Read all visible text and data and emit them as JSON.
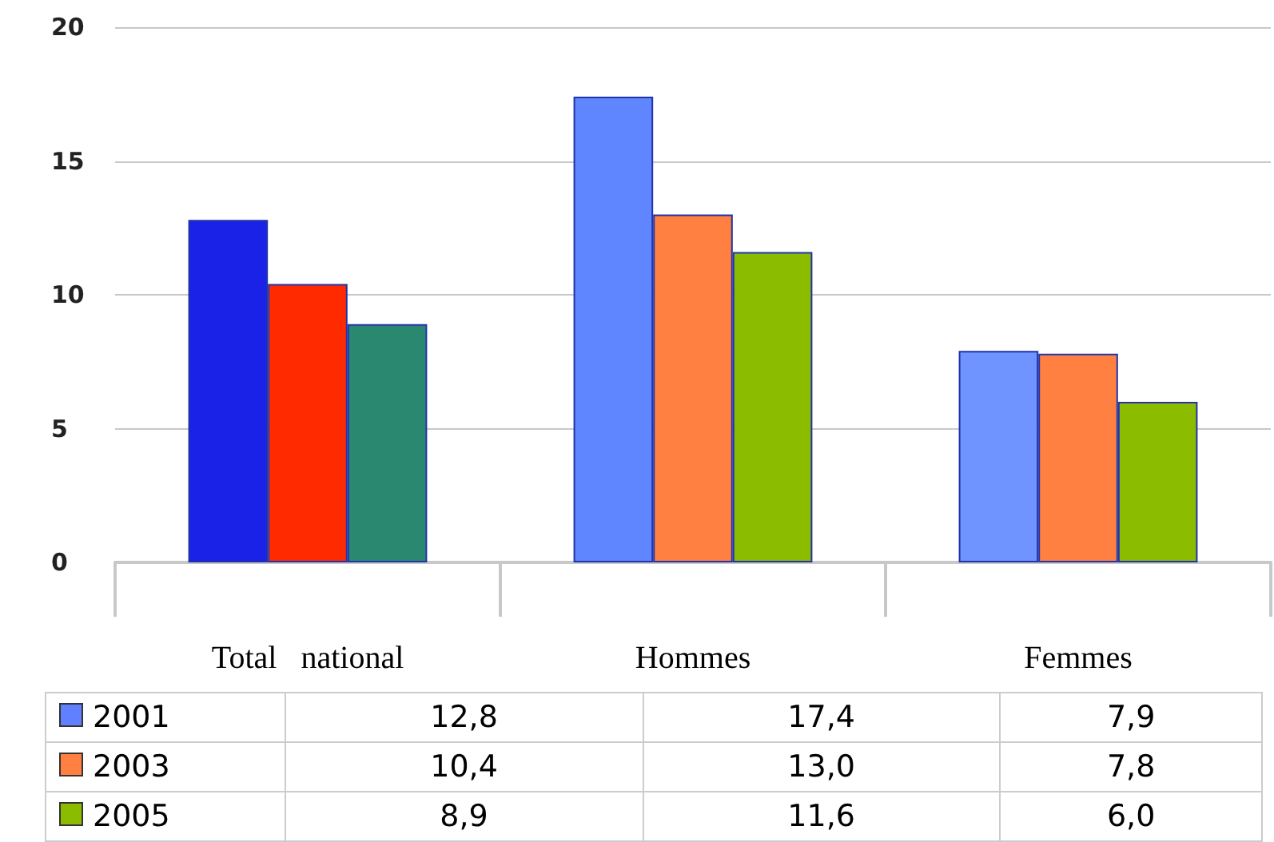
{
  "chart_data": {
    "type": "bar",
    "categories": [
      "Total   national",
      "Hommes",
      "Femmes"
    ],
    "series": [
      {
        "name": "2001",
        "color": "#6080ff",
        "colors": [
          "#1a22e8",
          "#5f86ff",
          "#6f93ff"
        ],
        "values": [
          12.8,
          17.4,
          7.9
        ],
        "value_labels": [
          "12,8",
          "17,4",
          "7,9"
        ]
      },
      {
        "name": "2003",
        "color": "#ff8040",
        "colors": [
          "#ff2a00",
          "#ff8040",
          "#ff8040"
        ],
        "values": [
          10.4,
          13.0,
          7.8
        ],
        "value_labels": [
          "10,4",
          "13,0",
          "7,8"
        ]
      },
      {
        "name": "2005",
        "color": "#8cbc00",
        "colors": [
          "#2a8870",
          "#8cbc00",
          "#8cbc00"
        ],
        "values": [
          8.9,
          11.6,
          6.0
        ],
        "value_labels": [
          "8,9",
          "11,6",
          "6,0"
        ]
      }
    ],
    "ylim": [
      0,
      20
    ],
    "yticks": [
      0,
      5,
      10,
      15,
      20
    ],
    "grid": "y",
    "legend": "bottom"
  }
}
